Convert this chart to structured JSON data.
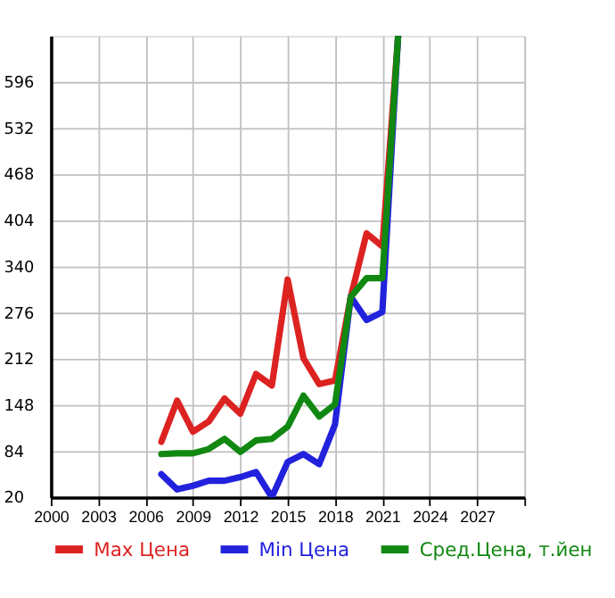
{
  "chart_data": {
    "type": "line",
    "x": [
      2007,
      2008,
      2009,
      2010,
      2011,
      2012,
      2013,
      2014,
      2015,
      2016,
      2017,
      2018,
      2019,
      2020,
      2021,
      2022
    ],
    "series": [
      {
        "name": "Max Цена",
        "color": "#dd2222",
        "values": [
          97,
          154,
          111,
          125,
          157,
          136,
          191,
          175,
          322,
          213,
          177,
          182,
          298,
          386,
          368,
          660
        ]
      },
      {
        "name": "Min Цена",
        "color": "#2222dd",
        "values": [
          52,
          31,
          36,
          43,
          43,
          48,
          55,
          20,
          69,
          80,
          66,
          121,
          298,
          266,
          277,
          660
        ]
      },
      {
        "name": "Сред.Цена, т.йен",
        "color": "#118811",
        "values": [
          80,
          81,
          81,
          87,
          101,
          83,
          99,
          101,
          118,
          161,
          132,
          149,
          298,
          324,
          324,
          660
        ]
      }
    ],
    "xlim": [
      2000,
      2030
    ],
    "xticks": [
      2000,
      2003,
      2006,
      2009,
      2012,
      2015,
      2018,
      2021,
      2024,
      2027,
      {
        "value": 2030,
        "label": null
      }
    ],
    "ylim": [
      20,
      660
    ],
    "yticks": [
      20,
      84,
      148,
      212,
      276,
      340,
      404,
      468,
      532,
      596
    ],
    "grid": true,
    "legend": "bottom",
    "line_style": "solid",
    "marker": "none"
  }
}
